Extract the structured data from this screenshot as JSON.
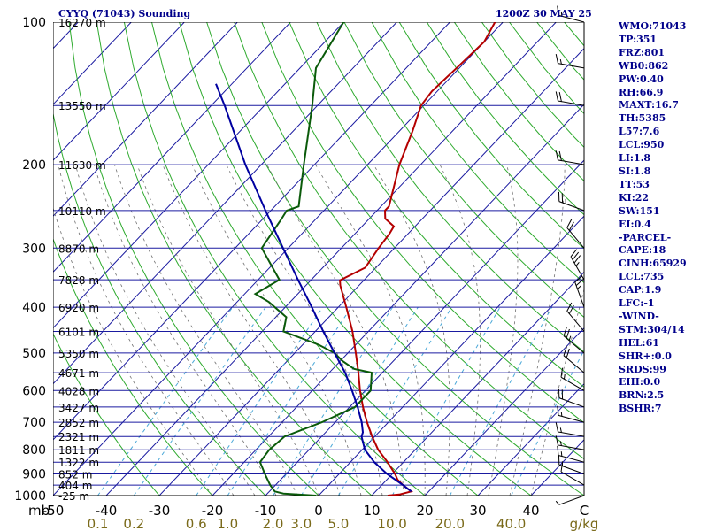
{
  "header": {
    "title": "CYYQ (71043) Sounding",
    "timestamp": "1200Z 30 MAY 25"
  },
  "indices": [
    "WMO:71043",
    "TP:351",
    "FRZ:801",
    "WB0:862",
    "PW:0.40",
    "RH:66.9",
    "MAXT:16.7",
    "TH:5385",
    "L57:7.6",
    "LCL:950",
    "LI:1.8",
    "SI:1.8",
    "TT:53",
    "KI:22",
    "SW:151",
    "EI:0.4",
    "-PARCEL-",
    "CAPE:18",
    "CINH:65929",
    "LCL:735",
    "CAP:1.9",
    "LFC:-1",
    "-WIND-",
    "STM:304/14",
    "HEL:61",
    "SHR+:0.0",
    "SRDS:99",
    "EHI:0.0",
    "BRN:2.5",
    "BSHR:7"
  ],
  "chart_data": {
    "type": "line",
    "title": "CYYQ (71043) Sounding",
    "subtitle": "1200Z 30 MAY 25",
    "xlabel": "",
    "ylabel": "mb",
    "x_unit_label": "C",
    "mixing_unit_label": "g/kg",
    "xlim": [
      -50,
      50
    ],
    "ylim": [
      1000,
      100
    ],
    "y_scale": "log-pressure",
    "x_ticks": [
      "-50",
      "-40",
      "-30",
      "-20",
      "-10",
      "0",
      "10",
      "20",
      "30",
      "40",
      "C"
    ],
    "pressure_ticks": [
      "100",
      "200",
      "300",
      "400",
      "500",
      "600",
      "700",
      "800",
      "900",
      "1000"
    ],
    "height_labels": [
      {
        "p": 100,
        "text": "16270 m"
      },
      {
        "p": 150,
        "text": "13550 m"
      },
      {
        "p": 200,
        "text": "11630 m"
      },
      {
        "p": 250,
        "text": "10110 m"
      },
      {
        "p": 300,
        "text": "8870 m"
      },
      {
        "p": 350,
        "text": "7828 m"
      },
      {
        "p": 400,
        "text": "6920 m"
      },
      {
        "p": 450,
        "text": "6101 m"
      },
      {
        "p": 500,
        "text": "5350 m"
      },
      {
        "p": 550,
        "text": "4671 m"
      },
      {
        "p": 600,
        "text": "4028 m"
      },
      {
        "p": 650,
        "text": "3427 m"
      },
      {
        "p": 700,
        "text": "2852 m"
      },
      {
        "p": 750,
        "text": "2321 m"
      },
      {
        "p": 800,
        "text": "1811 m"
      },
      {
        "p": 850,
        "text": "1322 m"
      },
      {
        "p": 900,
        "text": "852 m"
      },
      {
        "p": 950,
        "text": "404 m"
      },
      {
        "p": 1000,
        "text": "-25 m"
      }
    ],
    "mixing_ratio_labels": [
      "0.1",
      "0.2",
      "0.6",
      "1.0",
      "2.0",
      "3.0",
      "5.0",
      "10.0",
      "20.0",
      "40.0"
    ],
    "series": [
      {
        "name": "temperature",
        "color": "#b40000",
        "points": [
          [
            1000,
            13.0
          ],
          [
            995,
            15.0
          ],
          [
            980,
            16.7
          ],
          [
            950,
            14.0
          ],
          [
            925,
            12.0
          ],
          [
            900,
            10.5
          ],
          [
            850,
            7.0
          ],
          [
            800,
            3.0
          ],
          [
            750,
            -0.5
          ],
          [
            700,
            -4.0
          ],
          [
            650,
            -7.5
          ],
          [
            600,
            -11.0
          ],
          [
            550,
            -14.5
          ],
          [
            500,
            -18.5
          ],
          [
            450,
            -23.0
          ],
          [
            400,
            -28.5
          ],
          [
            360,
            -33.5
          ],
          [
            351,
            -34.5
          ],
          [
            330,
            -32.0
          ],
          [
            300,
            -33.0
          ],
          [
            280,
            -33.5
          ],
          [
            270,
            -34.0
          ],
          [
            260,
            -37.0
          ],
          [
            250,
            -38.5
          ],
          [
            245,
            -38.5
          ],
          [
            200,
            -44.0
          ],
          [
            170,
            -47.5
          ],
          [
            150,
            -50.5
          ],
          [
            140,
            -51.0
          ],
          [
            125,
            -50.5
          ],
          [
            110,
            -50.0
          ],
          [
            100,
            -51.5
          ]
        ]
      },
      {
        "name": "dewpoint",
        "color": "#0a5a0a",
        "points": [
          [
            1000,
            -0.5
          ],
          [
            990,
            -7.0
          ],
          [
            980,
            -9.0
          ],
          [
            950,
            -11.0
          ],
          [
            900,
            -14.0
          ],
          [
            850,
            -17.0
          ],
          [
            800,
            -17.5
          ],
          [
            750,
            -17.0
          ],
          [
            700,
            -12.5
          ],
          [
            650,
            -9.0
          ],
          [
            600,
            -9.0
          ],
          [
            550,
            -12.0
          ],
          [
            540,
            -16.0
          ],
          [
            520,
            -19.5
          ],
          [
            500,
            -22.5
          ],
          [
            480,
            -27.0
          ],
          [
            450,
            -36.0
          ],
          [
            420,
            -38.0
          ],
          [
            390,
            -44.0
          ],
          [
            375,
            -48.0
          ],
          [
            350,
            -46.0
          ],
          [
            300,
            -55.0
          ],
          [
            260,
            -56.5
          ],
          [
            250,
            -57.0
          ],
          [
            245,
            -55.5
          ],
          [
            200,
            -62.0
          ],
          [
            150,
            -71.0
          ],
          [
            125,
            -77.0
          ],
          [
            100,
            -80.0
          ]
        ]
      },
      {
        "name": "parcel",
        "color": "#0000a0",
        "points": [
          [
            980,
            16.7
          ],
          [
            950,
            14.0
          ],
          [
            900,
            9.0
          ],
          [
            850,
            4.5
          ],
          [
            800,
            0.5
          ],
          [
            750,
            -2.5
          ],
          [
            735,
            -3.0
          ],
          [
            700,
            -5.0
          ],
          [
            650,
            -8.5
          ],
          [
            600,
            -12.5
          ],
          [
            550,
            -17.0
          ],
          [
            500,
            -22.5
          ],
          [
            450,
            -28.5
          ],
          [
            400,
            -35.0
          ],
          [
            350,
            -42.5
          ],
          [
            300,
            -51.0
          ],
          [
            250,
            -61.0
          ],
          [
            200,
            -73.0
          ],
          [
            150,
            -87.5
          ],
          [
            135,
            -93.0
          ]
        ]
      }
    ],
    "wind_barbs": [
      {
        "p": 1000,
        "dir": 250,
        "spd": 5
      },
      {
        "p": 950,
        "dir": 300,
        "spd": 10
      },
      {
        "p": 900,
        "dir": 290,
        "spd": 15
      },
      {
        "p": 850,
        "dir": 285,
        "spd": 15
      },
      {
        "p": 800,
        "dir": 280,
        "spd": 15
      },
      {
        "p": 750,
        "dir": 280,
        "spd": 15
      },
      {
        "p": 700,
        "dir": 285,
        "spd": 15
      },
      {
        "p": 650,
        "dir": 290,
        "spd": 20
      },
      {
        "p": 600,
        "dir": 300,
        "spd": 15
      },
      {
        "p": 550,
        "dir": 310,
        "spd": 20
      },
      {
        "p": 500,
        "dir": 310,
        "spd": 25
      },
      {
        "p": 450,
        "dir": 320,
        "spd": 20
      },
      {
        "p": 400,
        "dir": 340,
        "spd": 25
      },
      {
        "p": 350,
        "dir": 330,
        "spd": 35
      },
      {
        "p": 300,
        "dir": 320,
        "spd": 20
      },
      {
        "p": 250,
        "dir": 290,
        "spd": 25
      },
      {
        "p": 200,
        "dir": 280,
        "spd": 20
      },
      {
        "p": 150,
        "dir": 280,
        "spd": 20
      },
      {
        "p": 125,
        "dir": 280,
        "spd": 15
      },
      {
        "p": 100,
        "dir": 285,
        "spd": 15
      }
    ],
    "colors": {
      "isobar": "#1a1aa0",
      "isotherm": "#1a1aa0",
      "dry_adiabat": "#2eaa2e",
      "moist_adiabat": "#707070",
      "mixing_ratio": "#4aa8d8",
      "wind": "#000000"
    },
    "grid": true,
    "legend": "none"
  }
}
